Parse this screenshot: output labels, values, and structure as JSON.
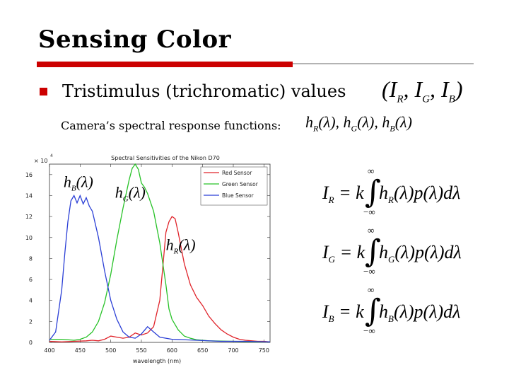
{
  "slide": {
    "title": "Sensing Color",
    "bullet": "Tristimulus (trichromatic) values",
    "triple": {
      "open": "(",
      "I1": "I",
      "s1": "R",
      "I2": "I",
      "s2": "G",
      "I3": "I",
      "s3": "B",
      "close": ")",
      "sep": ","
    },
    "sub_label": "Camera’s spectral response functions:",
    "responses": {
      "h": "h",
      "r": "R",
      "g": "G",
      "b": "B",
      "lam": "(λ)"
    },
    "equations": [
      {
        "I": "I",
        "sub": "R",
        "eq": "= k",
        "upper": "∞",
        "lower": "−∞",
        "h": "h",
        "hsub": "R",
        "body": "(λ)p(λ)dλ"
      },
      {
        "I": "I",
        "sub": "G",
        "eq": "= k",
        "upper": "∞",
        "lower": "−∞",
        "h": "h",
        "hsub": "G",
        "body": "(λ)p(λ)dλ"
      },
      {
        "I": "I",
        "sub": "B",
        "eq": "= k",
        "upper": "∞",
        "lower": "−∞",
        "h": "h",
        "hsub": "B",
        "body": "(λ)p(λ)dλ"
      }
    ]
  },
  "chart_data": {
    "type": "line",
    "title": "Spectral Sensitivities of the Nikon D70",
    "xlabel": "wavelength (nm)",
    "ylabel": "",
    "y_multiplier": "× 10",
    "y_exponent": "4",
    "xlim": [
      400,
      760
    ],
    "ylim": [
      0,
      17
    ],
    "xticks": [
      400,
      450,
      500,
      550,
      600,
      650,
      700,
      750
    ],
    "yticks": [
      0,
      2,
      4,
      6,
      8,
      10,
      12,
      14,
      16
    ],
    "legend_position": "top-right",
    "annotations": [
      {
        "h": "h",
        "sub": "B",
        "lam": "(λ)",
        "x": 423,
        "y": 14.8
      },
      {
        "h": "h",
        "sub": "G",
        "lam": "(λ)",
        "x": 507,
        "y": 13.8
      },
      {
        "h": "h",
        "sub": "R",
        "lam": "(λ)",
        "x": 590,
        "y": 8.8
      }
    ],
    "series": [
      {
        "name": "Red Sensor",
        "color": "#e0242b",
        "x": [
          400,
          420,
          440,
          460,
          470,
          480,
          490,
          500,
          510,
          520,
          530,
          540,
          550,
          560,
          570,
          580,
          585,
          590,
          595,
          600,
          605,
          610,
          620,
          630,
          640,
          650,
          660,
          670,
          680,
          690,
          700,
          710,
          720,
          730,
          740,
          750,
          760
        ],
        "y": [
          0.1,
          0.05,
          0.1,
          0.15,
          0.2,
          0.15,
          0.3,
          0.6,
          0.5,
          0.4,
          0.5,
          0.9,
          0.7,
          0.9,
          1.5,
          4.0,
          7.2,
          10.5,
          11.5,
          12.0,
          11.8,
          10.5,
          7.5,
          5.5,
          4.3,
          3.5,
          2.5,
          1.8,
          1.2,
          0.8,
          0.5,
          0.3,
          0.2,
          0.15,
          0.1,
          0.1,
          0.05
        ]
      },
      {
        "name": "Green Sensor",
        "color": "#28c228",
        "x": [
          400,
          420,
          440,
          450,
          460,
          470,
          480,
          490,
          500,
          510,
          520,
          530,
          535,
          540,
          545,
          550,
          555,
          560,
          570,
          580,
          590,
          595,
          600,
          610,
          620,
          630,
          640,
          660,
          700,
          740,
          760
        ],
        "y": [
          0.3,
          0.3,
          0.2,
          0.3,
          0.5,
          1.0,
          2.0,
          3.8,
          6.5,
          9.8,
          12.8,
          15.5,
          16.6,
          17.0,
          16.5,
          15.2,
          14.8,
          14.2,
          12.5,
          9.5,
          5.5,
          3.2,
          2.2,
          1.2,
          0.6,
          0.4,
          0.25,
          0.15,
          0.1,
          0.05,
          0.05
        ]
      },
      {
        "name": "Blue Sensor",
        "color": "#2b3fd6",
        "x": [
          400,
          410,
          420,
          425,
          430,
          435,
          440,
          445,
          450,
          455,
          460,
          465,
          470,
          480,
          490,
          500,
          510,
          520,
          530,
          540,
          550,
          560,
          570,
          580,
          600,
          640,
          680,
          720,
          760
        ],
        "y": [
          0.2,
          1.0,
          5.0,
          8.5,
          11.5,
          13.5,
          14.0,
          13.3,
          14.0,
          13.2,
          13.8,
          13.0,
          12.5,
          10.0,
          6.8,
          4.0,
          2.2,
          1.0,
          0.5,
          0.4,
          0.8,
          1.5,
          1.0,
          0.5,
          0.3,
          0.2,
          0.1,
          0.1,
          0.05
        ]
      }
    ]
  }
}
